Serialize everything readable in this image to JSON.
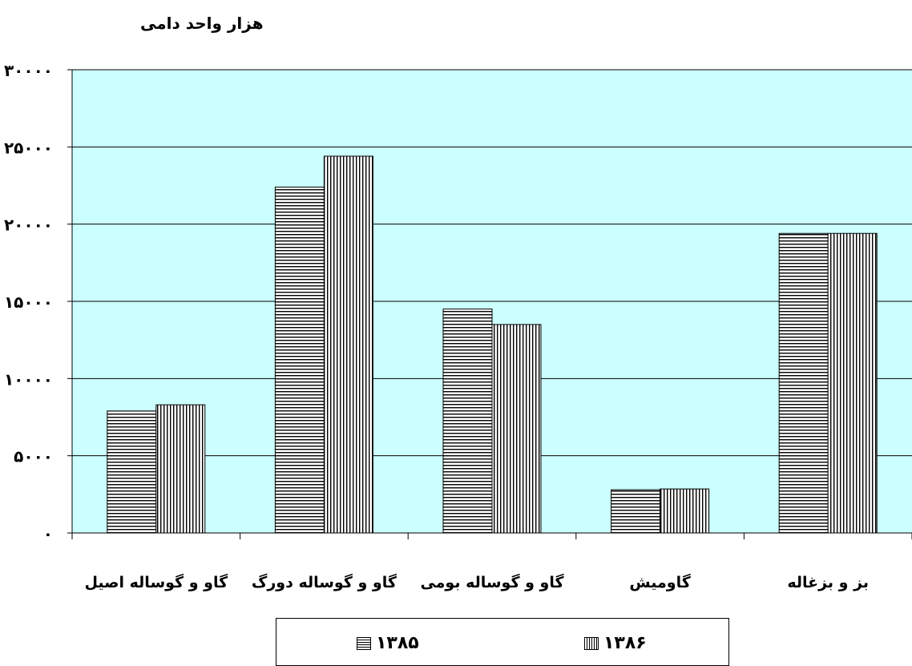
{
  "chart_data": {
    "type": "bar",
    "title": "",
    "ylabel": "هزار واحد دامی",
    "xlabel": "",
    "categories": [
      "گاو و گوساله اصیل",
      "گاو و گوساله دورگ",
      "گاو و گوساله بومی",
      "گاومیش",
      "بز و بزغاله"
    ],
    "series": [
      {
        "name": "۱۳۸۵",
        "values": [
          7900,
          22400,
          14500,
          2800,
          19400
        ]
      },
      {
        "name": "۱۳۸۶",
        "values": [
          8300,
          24400,
          13500,
          2850,
          19400
        ]
      }
    ],
    "ylim": [
      0,
      30000
    ],
    "yticks": [
      0,
      5000,
      10000,
      15000,
      20000,
      25000,
      30000
    ],
    "ytick_labels": [
      "۰",
      "۵۰۰۰",
      "۱۰۰۰۰",
      "۱۵۰۰۰",
      "۲۰۰۰۰",
      "۲۵۰۰۰",
      "۳۰۰۰۰"
    ],
    "grid": true,
    "legend_position": "bottom",
    "plot_background": "#ccffff",
    "bar_fill": "#ffffff",
    "bar_pattern_colors": [
      "#000000",
      "#000000"
    ]
  }
}
